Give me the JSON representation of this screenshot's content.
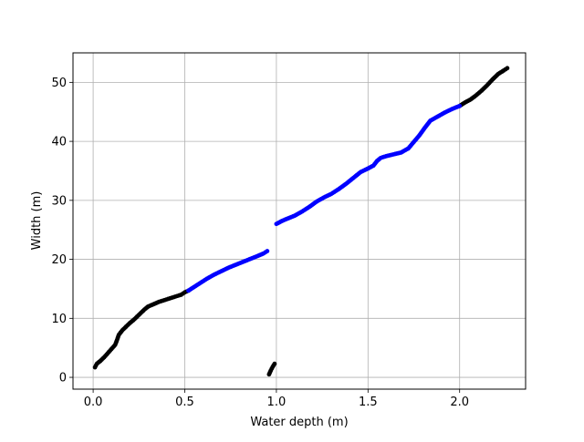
{
  "chart_data": {
    "type": "scatter",
    "title": "",
    "xlabel": "Water depth (m)",
    "ylabel": "Width (m)",
    "xlim": [
      -0.11,
      2.36
    ],
    "ylim": [
      -2.0,
      55.0
    ],
    "xticks": [
      0.0,
      0.5,
      1.0,
      1.5,
      2.0
    ],
    "xtick_labels": [
      "0.0",
      "0.5",
      "1.0",
      "1.5",
      "2.0"
    ],
    "yticks": [
      0,
      10,
      20,
      30,
      40,
      50
    ],
    "ytick_labels": [
      "0",
      "10",
      "20",
      "30",
      "40",
      "50"
    ],
    "grid": true,
    "legend": "none",
    "series": [
      {
        "color": "#000000",
        "segments": [
          [
            [
              0.01,
              1.7
            ],
            [
              0.02,
              2.3
            ],
            [
              0.04,
              2.8
            ],
            [
              0.06,
              3.4
            ],
            [
              0.08,
              4.1
            ],
            [
              0.1,
              4.8
            ],
            [
              0.12,
              5.5
            ],
            [
              0.13,
              6.3
            ],
            [
              0.14,
              7.2
            ],
            [
              0.16,
              8.0
            ],
            [
              0.18,
              8.6
            ],
            [
              0.2,
              9.2
            ],
            [
              0.22,
              9.7
            ],
            [
              0.24,
              10.3
            ],
            [
              0.26,
              10.9
            ],
            [
              0.28,
              11.5
            ],
            [
              0.3,
              12.0
            ],
            [
              0.33,
              12.4
            ],
            [
              0.36,
              12.8
            ],
            [
              0.39,
              13.1
            ],
            [
              0.42,
              13.4
            ],
            [
              0.45,
              13.7
            ],
            [
              0.48,
              14.0
            ],
            [
              0.5,
              14.4
            ],
            [
              0.52,
              14.7
            ]
          ],
          [
            [
              0.96,
              0.5
            ],
            [
              0.97,
              1.2
            ],
            [
              0.98,
              1.8
            ],
            [
              0.99,
              2.3
            ]
          ],
          [
            [
              2.0,
              46.0
            ],
            [
              2.03,
              46.6
            ],
            [
              2.06,
              47.1
            ],
            [
              2.09,
              47.8
            ],
            [
              2.12,
              48.6
            ],
            [
              2.15,
              49.5
            ],
            [
              2.18,
              50.5
            ],
            [
              2.21,
              51.4
            ],
            [
              2.24,
              52.0
            ],
            [
              2.26,
              52.4
            ]
          ]
        ]
      },
      {
        "color": "#0000ff",
        "segments": [
          [
            [
              0.52,
              14.7
            ],
            [
              0.55,
              15.3
            ],
            [
              0.58,
              15.9
            ],
            [
              0.62,
              16.7
            ],
            [
              0.66,
              17.4
            ],
            [
              0.7,
              18.0
            ],
            [
              0.74,
              18.6
            ],
            [
              0.78,
              19.1
            ],
            [
              0.82,
              19.6
            ],
            [
              0.86,
              20.1
            ],
            [
              0.9,
              20.6
            ],
            [
              0.93,
              21.0
            ],
            [
              0.95,
              21.4
            ]
          ],
          [
            [
              1.0,
              26.0
            ],
            [
              1.03,
              26.5
            ],
            [
              1.06,
              26.9
            ],
            [
              1.1,
              27.4
            ],
            [
              1.14,
              28.1
            ],
            [
              1.18,
              28.9
            ],
            [
              1.22,
              29.8
            ],
            [
              1.26,
              30.5
            ],
            [
              1.3,
              31.1
            ],
            [
              1.34,
              31.9
            ],
            [
              1.38,
              32.8
            ],
            [
              1.42,
              33.8
            ],
            [
              1.46,
              34.8
            ],
            [
              1.5,
              35.4
            ],
            [
              1.53,
              35.9
            ],
            [
              1.55,
              36.7
            ],
            [
              1.57,
              37.2
            ],
            [
              1.6,
              37.5
            ],
            [
              1.64,
              37.8
            ],
            [
              1.68,
              38.1
            ],
            [
              1.72,
              38.8
            ],
            [
              1.75,
              39.9
            ],
            [
              1.78,
              41.0
            ],
            [
              1.81,
              42.3
            ],
            [
              1.84,
              43.5
            ],
            [
              1.88,
              44.2
            ],
            [
              1.92,
              44.9
            ],
            [
              1.96,
              45.5
            ],
            [
              2.0,
              46.0
            ]
          ]
        ]
      }
    ]
  }
}
